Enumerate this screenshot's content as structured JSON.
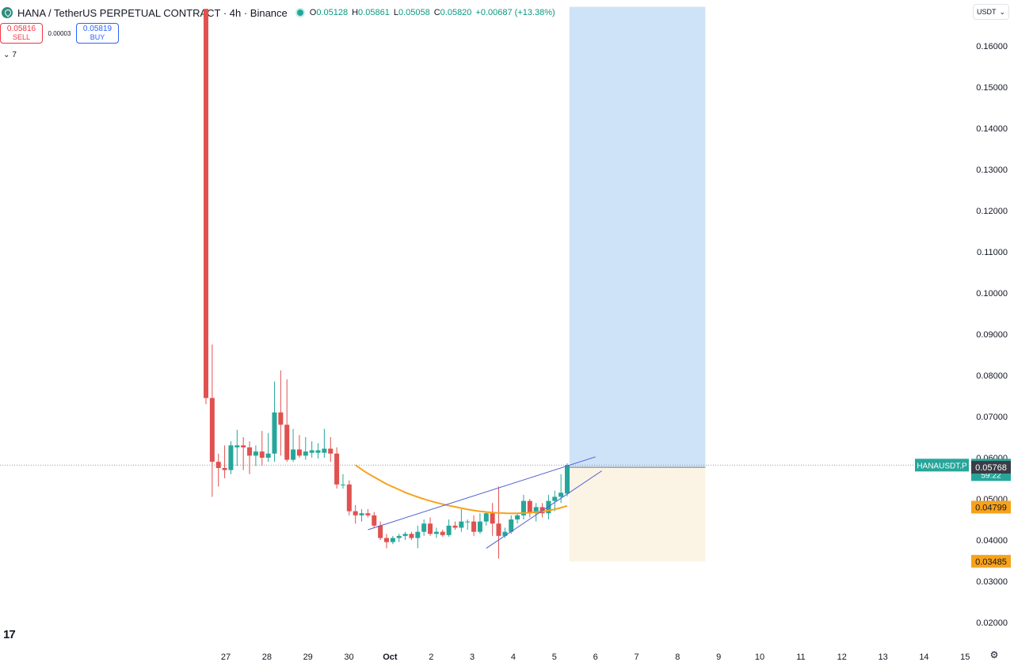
{
  "header": {
    "title": "HANA / TetherUS PERPETUAL CONTRACT · 4h · Binance",
    "ohlc": {
      "o_label": "O",
      "o": "0.05128",
      "h_label": "H",
      "h": "0.05861",
      "l_label": "L",
      "l": "0.05058",
      "c_label": "C",
      "c": "0.05820",
      "change": "+0.00687 (+13.38%)"
    }
  },
  "trade": {
    "sell_price": "0.05816",
    "sell_label": "SELL",
    "spread": "0.00003",
    "buy_price": "0.05819",
    "buy_label": "BUY"
  },
  "indicators_toggle": "7",
  "currency": "USDT",
  "colors": {
    "up": "#26a69a",
    "down": "#e0514f",
    "ma": "#f7a21b",
    "profit_zone": "#cfe3f8",
    "loss_zone": "#fbf3e3",
    "trendline": "#4c5fd4",
    "label_dark": "#3a3d45"
  },
  "tv_logo": "17",
  "chart_data": {
    "type": "candlestick",
    "title": "",
    "timeframe": "4h",
    "x_ticks": [
      "27",
      "28",
      "29",
      "30",
      "Oct",
      "2",
      "3",
      "4",
      "5",
      "6",
      "7",
      "8",
      "9",
      "10",
      "11",
      "12",
      "13",
      "14",
      "15"
    ],
    "x_tick_days": [
      "Sep 27",
      "Sep 28",
      "Sep 29",
      "Sep 30",
      "Oct 1",
      "Oct 2",
      "Oct 3",
      "Oct 4",
      "Oct 5",
      "Oct 6",
      "Oct 7",
      "Oct 8",
      "Oct 9",
      "Oct 10",
      "Oct 11",
      "Oct 12",
      "Oct 13",
      "Oct 14",
      "Oct 15"
    ],
    "y_ticks": [
      "0.16000",
      "0.15000",
      "0.14000",
      "0.13000",
      "0.12000",
      "0.11000",
      "0.10000",
      "0.09000",
      "0.08000",
      "0.07000",
      "0.06000",
      "0.05000",
      "0.04000",
      "0.03000",
      "0.02000"
    ],
    "ylim": [
      0.0195,
      0.1695
    ],
    "candles": [
      {
        "o": 0.169,
        "h": 0.169,
        "l": 0.073,
        "c": 0.0745
      },
      {
        "o": 0.0745,
        "h": 0.0875,
        "l": 0.0505,
        "c": 0.059
      },
      {
        "o": 0.059,
        "h": 0.061,
        "l": 0.053,
        "c": 0.0575
      },
      {
        "o": 0.0575,
        "h": 0.063,
        "l": 0.055,
        "c": 0.057
      },
      {
        "o": 0.057,
        "h": 0.064,
        "l": 0.056,
        "c": 0.063
      },
      {
        "o": 0.0625,
        "h": 0.0668,
        "l": 0.058,
        "c": 0.063
      },
      {
        "o": 0.063,
        "h": 0.065,
        "l": 0.057,
        "c": 0.0625
      },
      {
        "o": 0.0625,
        "h": 0.064,
        "l": 0.056,
        "c": 0.0605
      },
      {
        "o": 0.0605,
        "h": 0.063,
        "l": 0.058,
        "c": 0.0615
      },
      {
        "o": 0.0615,
        "h": 0.0665,
        "l": 0.058,
        "c": 0.06
      },
      {
        "o": 0.06,
        "h": 0.066,
        "l": 0.059,
        "c": 0.061
      },
      {
        "o": 0.061,
        "h": 0.0785,
        "l": 0.059,
        "c": 0.071
      },
      {
        "o": 0.071,
        "h": 0.0812,
        "l": 0.0605,
        "c": 0.068
      },
      {
        "o": 0.068,
        "h": 0.079,
        "l": 0.059,
        "c": 0.0595
      },
      {
        "o": 0.0595,
        "h": 0.067,
        "l": 0.059,
        "c": 0.062
      },
      {
        "o": 0.062,
        "h": 0.0655,
        "l": 0.06,
        "c": 0.0605
      },
      {
        "o": 0.0605,
        "h": 0.065,
        "l": 0.0595,
        "c": 0.0615
      },
      {
        "o": 0.0612,
        "h": 0.064,
        "l": 0.06,
        "c": 0.0618
      },
      {
        "o": 0.0612,
        "h": 0.0635,
        "l": 0.0598,
        "c": 0.0618
      },
      {
        "o": 0.0612,
        "h": 0.067,
        "l": 0.06,
        "c": 0.0622
      },
      {
        "o": 0.0622,
        "h": 0.065,
        "l": 0.059,
        "c": 0.061
      },
      {
        "o": 0.061,
        "h": 0.0625,
        "l": 0.0525,
        "c": 0.0535
      },
      {
        "o": 0.0535,
        "h": 0.056,
        "l": 0.0525,
        "c": 0.0535
      },
      {
        "o": 0.0535,
        "h": 0.0545,
        "l": 0.046,
        "c": 0.047
      },
      {
        "o": 0.047,
        "h": 0.0485,
        "l": 0.044,
        "c": 0.046
      },
      {
        "o": 0.046,
        "h": 0.0475,
        "l": 0.0445,
        "c": 0.0465
      },
      {
        "o": 0.0465,
        "h": 0.0475,
        "l": 0.0455,
        "c": 0.046
      },
      {
        "o": 0.046,
        "h": 0.0468,
        "l": 0.043,
        "c": 0.0435
      },
      {
        "o": 0.0435,
        "h": 0.0445,
        "l": 0.04,
        "c": 0.0405
      },
      {
        "o": 0.0405,
        "h": 0.0415,
        "l": 0.038,
        "c": 0.0395
      },
      {
        "o": 0.0395,
        "h": 0.041,
        "l": 0.039,
        "c": 0.0405
      },
      {
        "o": 0.0405,
        "h": 0.0415,
        "l": 0.0395,
        "c": 0.041
      },
      {
        "o": 0.041,
        "h": 0.042,
        "l": 0.04,
        "c": 0.0415
      },
      {
        "o": 0.0415,
        "h": 0.042,
        "l": 0.04,
        "c": 0.0405
      },
      {
        "o": 0.0405,
        "h": 0.0435,
        "l": 0.038,
        "c": 0.042
      },
      {
        "o": 0.042,
        "h": 0.045,
        "l": 0.041,
        "c": 0.044
      },
      {
        "o": 0.044,
        "h": 0.0455,
        "l": 0.041,
        "c": 0.0415
      },
      {
        "o": 0.0415,
        "h": 0.043,
        "l": 0.0405,
        "c": 0.042
      },
      {
        "o": 0.042,
        "h": 0.0425,
        "l": 0.0408,
        "c": 0.0412
      },
      {
        "o": 0.0412,
        "h": 0.045,
        "l": 0.0408,
        "c": 0.0435
      },
      {
        "o": 0.0435,
        "h": 0.0445,
        "l": 0.0425,
        "c": 0.043
      },
      {
        "o": 0.043,
        "h": 0.0475,
        "l": 0.042,
        "c": 0.0445
      },
      {
        "o": 0.0445,
        "h": 0.045,
        "l": 0.0425,
        "c": 0.0445
      },
      {
        "o": 0.0445,
        "h": 0.046,
        "l": 0.041,
        "c": 0.042
      },
      {
        "o": 0.042,
        "h": 0.0465,
        "l": 0.0415,
        "c": 0.0445
      },
      {
        "o": 0.0445,
        "h": 0.047,
        "l": 0.0435,
        "c": 0.0465
      },
      {
        "o": 0.0465,
        "h": 0.049,
        "l": 0.041,
        "c": 0.044
      },
      {
        "o": 0.044,
        "h": 0.053,
        "l": 0.0355,
        "c": 0.041
      },
      {
        "o": 0.041,
        "h": 0.043,
        "l": 0.0405,
        "c": 0.042
      },
      {
        "o": 0.042,
        "h": 0.046,
        "l": 0.0415,
        "c": 0.045
      },
      {
        "o": 0.045,
        "h": 0.0465,
        "l": 0.044,
        "c": 0.046
      },
      {
        "o": 0.046,
        "h": 0.051,
        "l": 0.045,
        "c": 0.0495
      },
      {
        "o": 0.0495,
        "h": 0.05,
        "l": 0.0455,
        "c": 0.0465
      },
      {
        "o": 0.0465,
        "h": 0.049,
        "l": 0.0445,
        "c": 0.048
      },
      {
        "o": 0.048,
        "h": 0.049,
        "l": 0.0455,
        "c": 0.0465
      },
      {
        "o": 0.0465,
        "h": 0.051,
        "l": 0.045,
        "c": 0.0495
      },
      {
        "o": 0.0495,
        "h": 0.052,
        "l": 0.047,
        "c": 0.0505
      },
      {
        "o": 0.0505,
        "h": 0.056,
        "l": 0.049,
        "c": 0.0515
      },
      {
        "o": 0.0513,
        "h": 0.0586,
        "l": 0.0506,
        "c": 0.0582
      }
    ],
    "moving_average": [
      0.0582,
      0.0565,
      0.0551,
      0.0537,
      0.0526,
      0.0515,
      0.0506,
      0.0498,
      0.0491,
      0.0485,
      0.048,
      0.0475,
      0.0471,
      0.0468,
      0.0466,
      0.0465,
      0.0465,
      0.0466,
      0.0468,
      0.0471,
      0.0476,
      0.0483
    ],
    "trend_upper": [
      [
        0.0425,
        0.0602
      ]
    ],
    "trend_lower": [
      [
        0.038,
        0.0568
      ]
    ],
    "position_tool": {
      "entry": 0.05768,
      "target": 0.1695,
      "stop": 0.03485,
      "start_day": "Oct 5",
      "end_day": "Oct 8"
    },
    "price_labels": [
      {
        "text": "HANAUSDT.P",
        "value": "0.05820",
        "sub": "59:22"
      },
      {
        "value": "0.05768"
      },
      {
        "value": "0.04799"
      },
      {
        "value": "0.03485"
      }
    ],
    "current_price": 0.0582,
    "legend": "none",
    "grid": false
  }
}
